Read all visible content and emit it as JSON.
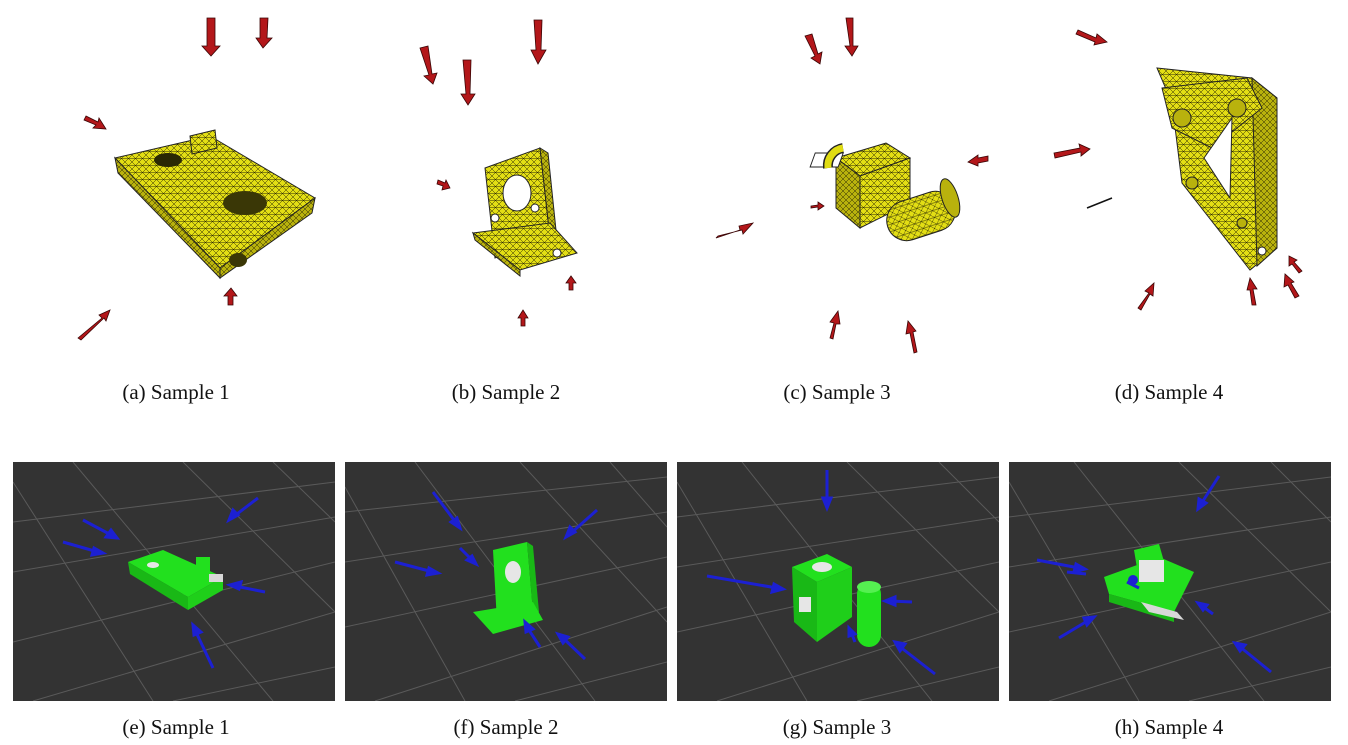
{
  "figure": {
    "top_row": [
      {
        "label": "(a)",
        "caption": "Sample 1"
      },
      {
        "label": "(b)",
        "caption": "Sample 2"
      },
      {
        "label": "(c)",
        "caption": "Sample 3"
      },
      {
        "label": "(d)",
        "caption": "Sample 4"
      }
    ],
    "bottom_row": [
      {
        "label": "(e)",
        "caption": "Sample 1"
      },
      {
        "label": "(f)",
        "caption": "Sample 2"
      },
      {
        "label": "(g)",
        "caption": "Sample 3"
      },
      {
        "label": "(h)",
        "caption": "Sample 4"
      }
    ]
  },
  "colors": {
    "mesh_yellow": "#e0dc12",
    "arrow_red": "#b3171a",
    "sim_green": "#22e01e",
    "arrow_blue": "#1c20d2",
    "sim_background": "#333333",
    "grid_line": "#5a5a5a"
  }
}
